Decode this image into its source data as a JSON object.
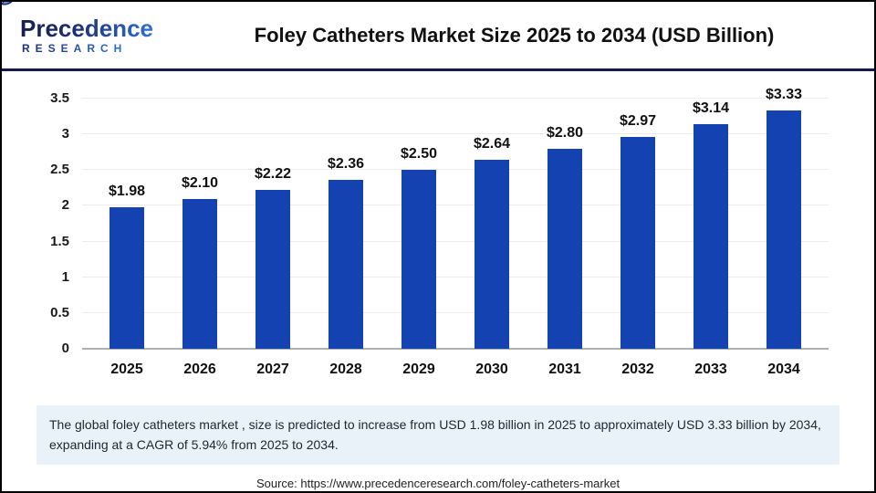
{
  "logo": {
    "word": "Precedence",
    "subword": "RESEARCH"
  },
  "header": {
    "title": "Foley Catheters Market Size 2025 to 2034 (USD Billion)"
  },
  "chart_data": {
    "type": "bar",
    "title": "Foley Catheters Market Size 2025 to 2034 (USD Billion)",
    "categories": [
      "2025",
      "2026",
      "2027",
      "2028",
      "2029",
      "2030",
      "2031",
      "2032",
      "2033",
      "2034"
    ],
    "values": [
      1.98,
      2.1,
      2.22,
      2.36,
      2.5,
      2.64,
      2.8,
      2.97,
      3.14,
      3.33
    ],
    "value_labels": [
      "$1.98",
      "$2.10",
      "$2.22",
      "$2.36",
      "$2.50",
      "$2.64",
      "$2.80",
      "$2.97",
      "$3.14",
      "$3.33"
    ],
    "xlabel": "",
    "ylabel": "",
    "ylim": [
      0,
      3.5
    ],
    "yticks": [
      0,
      0.5,
      1,
      1.5,
      2,
      2.5,
      3,
      3.5
    ],
    "ytick_labels": [
      "0",
      "0.5",
      "1",
      "1.5",
      "2",
      "2.5",
      "3",
      "3.5"
    ],
    "grid": "horizontal",
    "legend": "none",
    "bar_color": "#1442b0"
  },
  "summary": {
    "text": "The global foley catheters market , size is predicted to increase from USD 1.98 billion in 2025 to approximately USD 3.33 billion by 2034, expanding at a CAGR of 5.94% from 2025 to 2034."
  },
  "source": {
    "text": "Source: https://www.precedenceresearch.com/foley-catheters-market"
  },
  "colors": {
    "bar": "#1442b0",
    "header_rule": "#131b4d",
    "page_border": "#000000",
    "summary_bg": "#e9f1f9",
    "gridline": "#ededed",
    "axis_line": "#b0b0b0",
    "logo_navy": "#1b2d73",
    "logo_blue": "#2f6fd6"
  }
}
